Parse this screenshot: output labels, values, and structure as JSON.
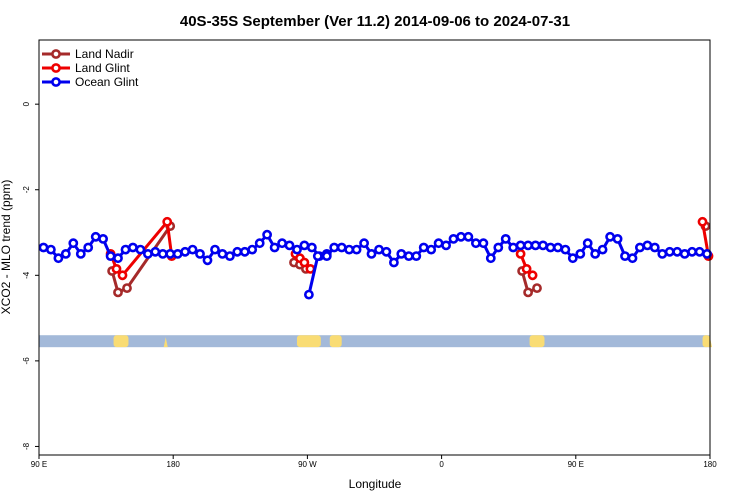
{
  "chart_data": {
    "type": "line",
    "title": "40S-35S September (Ver 11.2)   2014-09-06 to 2024-07-31",
    "xlabel": "Longitude",
    "ylabel": "XCO2 - MLO trend (ppm)",
    "x_ticks": [
      {
        "value": 90,
        "label": "90 E"
      },
      {
        "value": 180,
        "label": "180"
      },
      {
        "value": 270,
        "label": "90 W"
      },
      {
        "value": 360,
        "label": "0"
      },
      {
        "value": 450,
        "label": "90 E"
      },
      {
        "value": 540,
        "label": "180"
      }
    ],
    "y_ticks": [
      {
        "value": 0,
        "label": "0"
      },
      {
        "value": -2,
        "label": "-2"
      },
      {
        "value": -4,
        "label": "-4"
      },
      {
        "value": -6,
        "label": "-6"
      },
      {
        "value": -8,
        "label": "-8"
      }
    ],
    "xlim": [
      90,
      540
    ],
    "ylim": [
      -8.2,
      1.5
    ],
    "grid": false,
    "legend_position": "top-left",
    "land_strip": {
      "y_range": [
        -5.68,
        -5.4
      ],
      "ocean_color": "#a3b9d9",
      "land_color": "#f9dc74",
      "land_spans": [
        [
          140,
          150
        ],
        [
          263,
          279
        ],
        [
          285,
          293
        ],
        [
          419,
          429
        ],
        [
          535,
          540
        ]
      ],
      "land_blips": [
        175,
        540
      ]
    },
    "series": [
      {
        "name": "Land Nadir",
        "color": "#a52a2a",
        "segments": [
          [
            [
              139,
              -3.9
            ],
            [
              143,
              -4.4
            ],
            [
              149,
              -4.3
            ],
            [
              178,
              -2.85
            ]
          ],
          [
            [
              261,
              -3.7
            ],
            [
              265,
              -3.75
            ],
            [
              269,
              -3.85
            ]
          ],
          [
            [
              414,
              -3.9
            ],
            [
              418,
              -4.4
            ],
            [
              424,
              -4.3
            ]
          ],
          [
            [
              537,
              -2.85
            ]
          ]
        ]
      },
      {
        "name": "Land Glint",
        "color": "#ee0000",
        "segments": [
          [
            [
              138,
              -3.5
            ],
            [
              142,
              -3.85
            ],
            [
              146,
              -4.0
            ],
            [
              176,
              -2.75
            ],
            [
              179,
              -3.55
            ]
          ],
          [
            [
              262,
              -3.5
            ],
            [
              265,
              -3.6
            ],
            [
              268,
              -3.7
            ],
            [
              272,
              -3.85
            ]
          ],
          [
            [
              413,
              -3.5
            ],
            [
              417,
              -3.85
            ],
            [
              421,
              -4.0
            ]
          ],
          [
            [
              535,
              -2.75
            ],
            [
              539,
              -3.55
            ]
          ]
        ]
      },
      {
        "name": "Ocean Glint",
        "color": "#0000ee",
        "segments": [
          [
            [
              93,
              -3.35
            ],
            [
              98,
              -3.4
            ],
            [
              103,
              -3.6
            ],
            [
              108,
              -3.5
            ],
            [
              113,
              -3.25
            ],
            [
              118,
              -3.5
            ],
            [
              123,
              -3.35
            ],
            [
              128,
              -3.1
            ],
            [
              133,
              -3.15
            ],
            [
              138,
              -3.55
            ],
            [
              143,
              -3.6
            ],
            [
              148,
              -3.4
            ],
            [
              153,
              -3.35
            ],
            [
              158,
              -3.4
            ],
            [
              163,
              -3.5
            ],
            [
              168,
              -3.45
            ],
            [
              173,
              -3.5
            ],
            [
              178,
              -3.5
            ],
            [
              183,
              -3.5
            ],
            [
              188,
              -3.45
            ],
            [
              193,
              -3.4
            ],
            [
              198,
              -3.5
            ],
            [
              203,
              -3.65
            ],
            [
              208,
              -3.4
            ],
            [
              213,
              -3.5
            ],
            [
              218,
              -3.55
            ],
            [
              223,
              -3.45
            ],
            [
              228,
              -3.45
            ],
            [
              233,
              -3.4
            ],
            [
              238,
              -3.25
            ],
            [
              243,
              -3.05
            ],
            [
              248,
              -3.35
            ],
            [
              253,
              -3.25
            ],
            [
              258,
              -3.3
            ],
            [
              263,
              -3.4
            ],
            [
              268,
              -3.3
            ],
            [
              273,
              -3.35
            ],
            [
              278,
              -3.55
            ],
            [
              283,
              -3.5
            ]
          ],
          [
            [
              271,
              -4.45
            ],
            [
              277,
              -3.55
            ],
            [
              283,
              -3.55
            ],
            [
              288,
              -3.35
            ],
            [
              293,
              -3.35
            ],
            [
              298,
              -3.4
            ],
            [
              303,
              -3.4
            ],
            [
              308,
              -3.25
            ],
            [
              313,
              -3.5
            ],
            [
              318,
              -3.4
            ],
            [
              323,
              -3.45
            ],
            [
              328,
              -3.7
            ],
            [
              333,
              -3.5
            ],
            [
              338,
              -3.55
            ],
            [
              343,
              -3.55
            ],
            [
              348,
              -3.35
            ],
            [
              353,
              -3.4
            ],
            [
              358,
              -3.25
            ],
            [
              363,
              -3.3
            ],
            [
              368,
              -3.15
            ],
            [
              373,
              -3.1
            ],
            [
              378,
              -3.1
            ],
            [
              383,
              -3.25
            ],
            [
              388,
              -3.25
            ],
            [
              393,
              -3.6
            ],
            [
              398,
              -3.35
            ],
            [
              403,
              -3.15
            ],
            [
              408,
              -3.35
            ],
            [
              413,
              -3.3
            ],
            [
              418,
              -3.3
            ],
            [
              423,
              -3.3
            ],
            [
              428,
              -3.3
            ],
            [
              433,
              -3.35
            ],
            [
              438,
              -3.35
            ],
            [
              443,
              -3.4
            ],
            [
              448,
              -3.6
            ],
            [
              453,
              -3.5
            ],
            [
              458,
              -3.25
            ],
            [
              463,
              -3.5
            ],
            [
              468,
              -3.4
            ],
            [
              473,
              -3.1
            ],
            [
              478,
              -3.15
            ],
            [
              483,
              -3.55
            ],
            [
              488,
              -3.6
            ],
            [
              493,
              -3.35
            ],
            [
              498,
              -3.3
            ],
            [
              503,
              -3.35
            ],
            [
              508,
              -3.5
            ],
            [
              513,
              -3.45
            ],
            [
              518,
              -3.45
            ],
            [
              523,
              -3.5
            ],
            [
              528,
              -3.45
            ],
            [
              533,
              -3.45
            ],
            [
              538,
              -3.5
            ]
          ]
        ]
      }
    ]
  }
}
